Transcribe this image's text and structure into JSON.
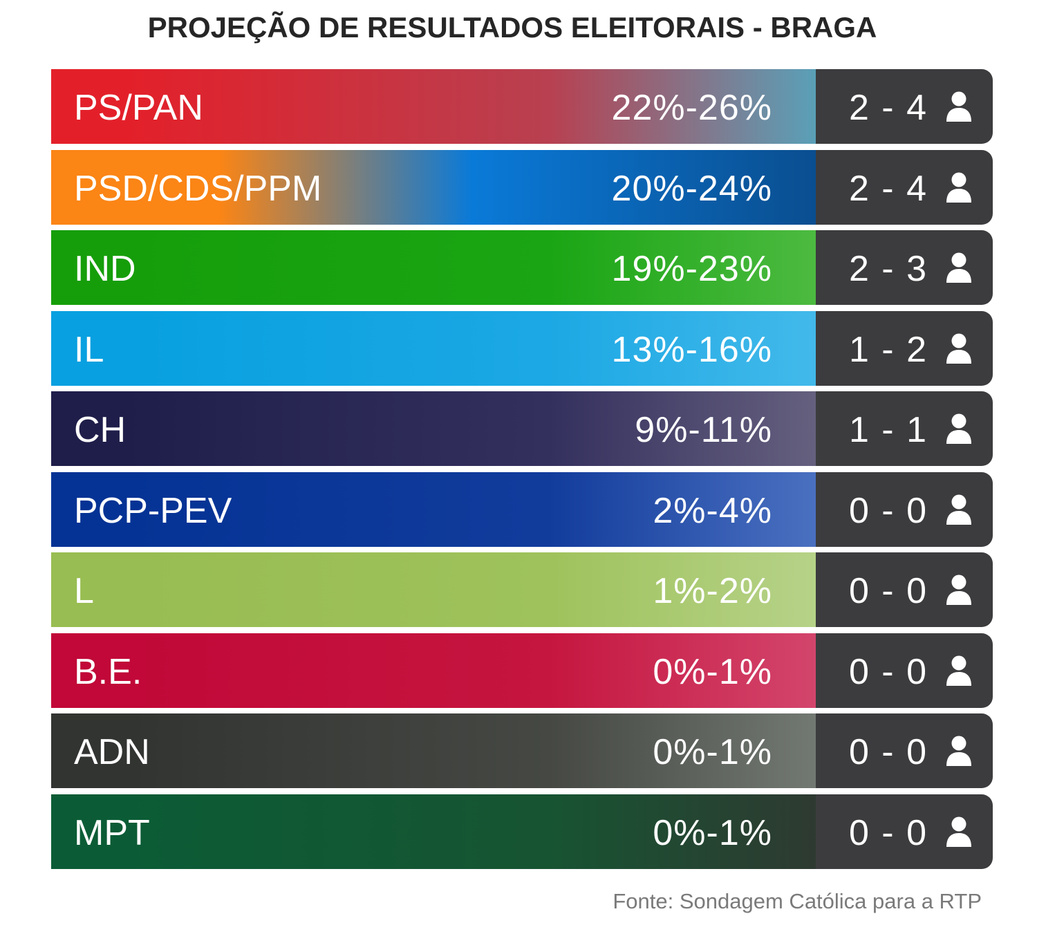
{
  "title": "PROJEÇÃO DE RESULTADOS ELEITORAIS - BRAGA",
  "source": "Fonte: Sondagem Católica para a RTP",
  "icons": {
    "seats": "person-icon"
  },
  "chart_data": {
    "type": "table",
    "title": "PROJEÇÃO DE RESULTADOS ELEITORAIS - BRAGA",
    "columns": [
      "party",
      "vote_range",
      "seats_range"
    ],
    "rows": [
      {
        "party": "PS/PAN",
        "pct": "22%-26%",
        "seats": "2 - 4",
        "vote_min": 22,
        "vote_max": 26,
        "seats_min": 2,
        "seats_max": 4,
        "colors": [
          "#e3202a",
          "#b84050",
          "#5aa0b8"
        ]
      },
      {
        "party": "PSD/CDS/PPM",
        "pct": "20%-24%",
        "seats": "2 - 4",
        "vote_min": 20,
        "vote_max": 24,
        "seats_min": 2,
        "seats_max": 4,
        "colors": [
          "#fb8515",
          "#0a7ad8",
          "#0a4e90"
        ]
      },
      {
        "party": "IND",
        "pct": "19%-23%",
        "seats": "2 - 3",
        "vote_min": 19,
        "vote_max": 23,
        "seats_min": 2,
        "seats_max": 3,
        "colors": [
          "#169e0a",
          "#1aa514",
          "#4cba40"
        ]
      },
      {
        "party": "IL",
        "pct": "13%-16%",
        "seats": "1 - 2",
        "vote_min": 13,
        "vote_max": 16,
        "seats_min": 1,
        "seats_max": 2,
        "colors": [
          "#08a0e0",
          "#1ca8e4",
          "#42b9ea"
        ]
      },
      {
        "party": "CH",
        "pct": "9%-11%",
        "seats": "1 - 1",
        "vote_min": 9,
        "vote_max": 11,
        "seats_min": 1,
        "seats_max": 1,
        "colors": [
          "#1f1e4a",
          "#34305e",
          "#65607e"
        ]
      },
      {
        "party": "PCP-PEV",
        "pct": "2%-4%",
        "seats": "0 - 0",
        "vote_min": 2,
        "vote_max": 4,
        "seats_min": 0,
        "seats_max": 0,
        "colors": [
          "#043395",
          "#123c9c",
          "#4a70c0"
        ]
      },
      {
        "party": "L",
        "pct": "1%-2%",
        "seats": "0 - 0",
        "vote_min": 1,
        "vote_max": 2,
        "seats_min": 0,
        "seats_max": 0,
        "colors": [
          "#98bd52",
          "#9fc25c",
          "#b6d288"
        ]
      },
      {
        "party": "B.E.",
        "pct": "0%-1%",
        "seats": "0 - 0",
        "vote_min": 0,
        "vote_max": 1,
        "seats_min": 0,
        "seats_max": 0,
        "colors": [
          "#c10838",
          "#c5163f",
          "#d3456c"
        ]
      },
      {
        "party": "ADN",
        "pct": "0%-1%",
        "seats": "0 - 0",
        "vote_min": 0,
        "vote_max": 1,
        "seats_min": 0,
        "seats_max": 0,
        "colors": [
          "#323432",
          "#454843",
          "#727872"
        ]
      },
      {
        "party": "MPT",
        "pct": "0%-1%",
        "seats": "0 - 0",
        "vote_min": 0,
        "vote_max": 1,
        "seats_min": 0,
        "seats_max": 0,
        "colors": [
          "#0b5c36",
          "#175432",
          "#2e3a31"
        ]
      }
    ]
  }
}
